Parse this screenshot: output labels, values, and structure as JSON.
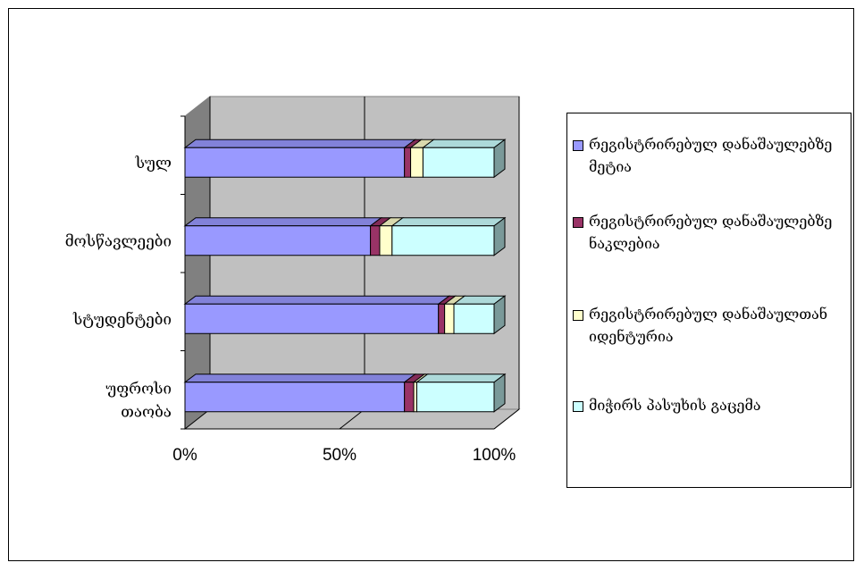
{
  "chart_data": {
    "type": "bar",
    "orientation": "horizontal",
    "stacked": "percent",
    "three_d": true,
    "categories": [
      "სულ",
      "მოსწავლეები",
      "სტუდენტები",
      "უფროსი თაობა"
    ],
    "series": [
      {
        "name": "რეგისტრირებულ დანაშაულებზე მეტია",
        "values": [
          71,
          60,
          82,
          71
        ],
        "color": "#9999ff"
      },
      {
        "name": "რეგისტრირებულ დანაშაულებზე ნაკლებია",
        "values": [
          2,
          3,
          2,
          3
        ],
        "color": "#993366"
      },
      {
        "name": "რეგისტრირებულ დანაშაულთან იდენტურია",
        "values": [
          4,
          4,
          3,
          1
        ],
        "color": "#ffffcc"
      },
      {
        "name": "მიჭირს პასუხის გაცემა",
        "values": [
          23,
          33,
          13,
          25
        ],
        "color": "#ccffff"
      }
    ],
    "xlim": [
      0,
      100
    ],
    "xticks": [
      "0%",
      "50%",
      "100%"
    ],
    "gridlines": true,
    "legend_position": "right",
    "title": "",
    "xlabel": "",
    "ylabel": ""
  }
}
